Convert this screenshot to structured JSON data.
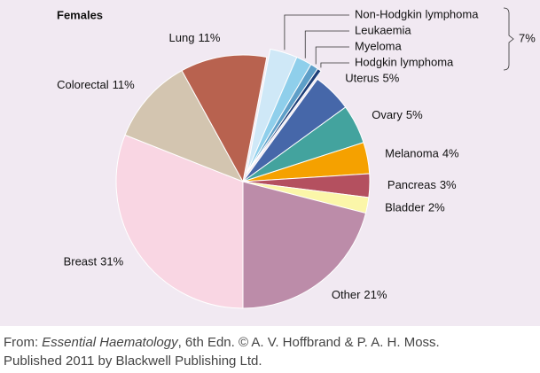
{
  "chart_data": {
    "type": "pie",
    "title": "Females",
    "categories": [
      "Breast",
      "Colorectal",
      "Lung",
      "Non-Hodgkin lymphoma",
      "Leukaemia",
      "Myeloma",
      "Hodgkin lymphoma",
      "Uterus",
      "Ovary",
      "Melanoma",
      "Pancreas",
      "Bladder",
      "Other"
    ],
    "values": [
      31,
      11,
      11,
      3.5,
      2,
      1,
      0.5,
      5,
      5,
      4,
      3,
      2,
      21
    ],
    "value_labels": [
      "31%",
      "11%",
      "11%",
      null,
      null,
      null,
      null,
      "5%",
      "5%",
      "4%",
      "3%",
      "2%",
      "21%"
    ],
    "colors": [
      "#f9d6e3",
      "#d3c5b0",
      "#b8624f",
      "#cfe8f7",
      "#8fcfeb",
      "#5e9fc8",
      "#1d3e78",
      "#4667a9",
      "#43a39e",
      "#f5a100",
      "#b4505f",
      "#fbf6a9",
      "#bc8ca9"
    ],
    "bracket": {
      "value": 7,
      "label": "7%"
    }
  },
  "caption": {
    "line1": [
      "From:",
      "Essential Haematology",
      ", 6th Edn. © A. V. Hoffbrand & P. A. H. Moss."
    ],
    "line2": "Published 2011 by Blackwell Publishing Ltd."
  }
}
